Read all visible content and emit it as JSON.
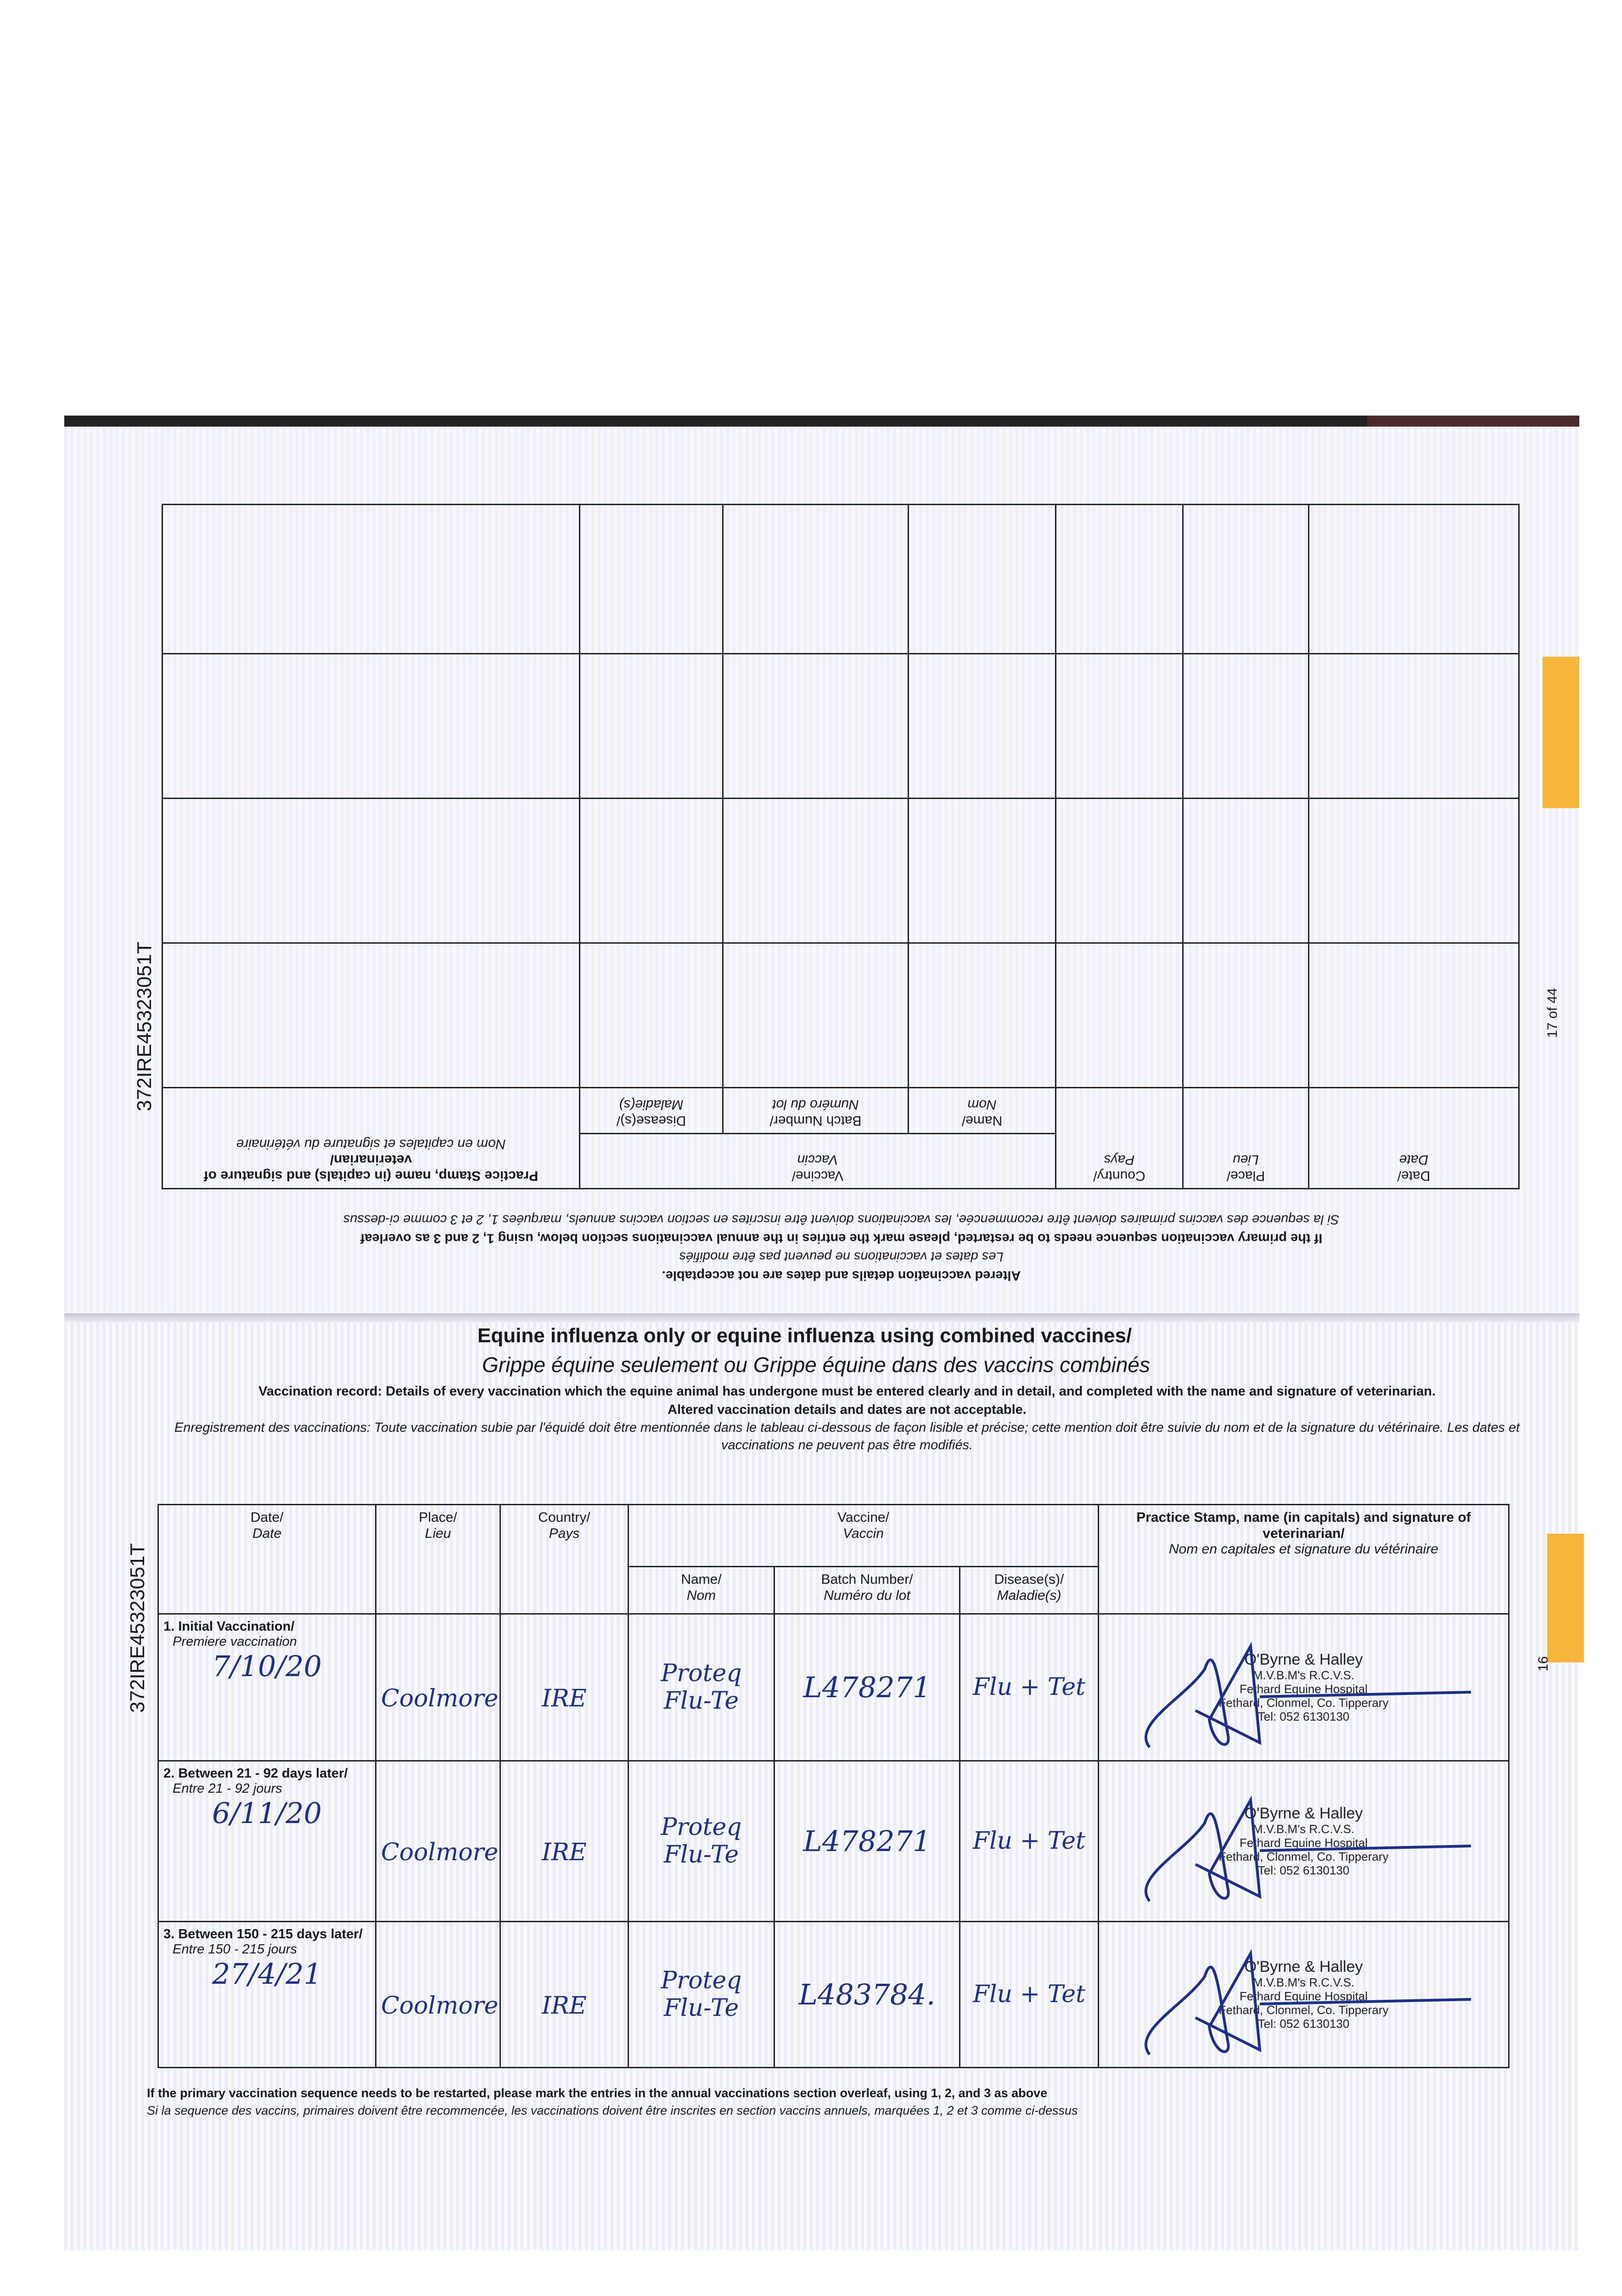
{
  "doc_id": "372IRE45323051T",
  "page_labels": {
    "top": "17 of 44",
    "bottom": "16"
  },
  "colors": {
    "ink": "#1c2f8c",
    "tab": "#f5b53c"
  },
  "upper_page": {
    "headers": {
      "date": "Date/",
      "date_fr": "Date",
      "place": "Place/",
      "place_fr": "Lieu",
      "country": "Country/",
      "country_fr": "Pays",
      "vaccine": "Vaccine/",
      "vaccine_fr": "Vaccin",
      "name": "Name/",
      "name_fr": "Nom",
      "batch": "Batch Number/",
      "batch_fr": "Numéro du lot",
      "disease": "Disease(s)/",
      "disease_fr": "Maladie(s)",
      "stamp": "Practice Stamp, name (in capitals) and signature of veterinarian/",
      "stamp_fr": "Nom en capitales et signature du vétérinaire"
    },
    "notes": [
      "Altered vaccination details and dates are not acceptable.",
      "Les dates et vaccinations ne peuvent pas être modifiés",
      "If the primary vaccination sequence needs to be restarted, please mark the entries in the annual vaccinations section below, using 1, 2 and 3 as overleaf",
      "Si la sequence des vaccins primaires doivent être recommencée, les vaccinations doivent être inscrites en section vaccins annuels, marquées 1, 2 et 3 comme ci-dessus"
    ]
  },
  "lower_page": {
    "title_en": "Equine influenza only or equine influenza using combined vaccines/",
    "title_fr": "Grippe équine seulement ou Grippe équine dans des vaccins combinés",
    "record_en": "Vaccination record: Details of every vaccination which the equine animal has undergone must be entered clearly and in detail, and completed with the name and signature of veterinarian.",
    "record_en2": "Altered vaccination details and dates are not acceptable.",
    "record_fr": "Enregistrement des vaccinations: Toute vaccination subie par l'équidé doit être mentionnée dans le tableau ci-dessous de façon lisible et précise; cette mention doit être suivie du nom et de la signature du vétérinaire. Les dates et vaccinations ne peuvent pas être modifiés.",
    "headers": {
      "date": "Date/",
      "date_fr": "Date",
      "place": "Place/",
      "place_fr": "Lieu",
      "country": "Country/",
      "country_fr": "Pays",
      "vaccine": "Vaccine/",
      "vaccine_fr": "Vaccin",
      "name": "Name/",
      "name_fr": "Nom",
      "batch": "Batch Number/",
      "batch_fr": "Numéro du lot",
      "disease": "Disease(s)/",
      "disease_fr": "Maladie(s)",
      "stamp": "Practice Stamp, name (in capitals) and signature of veterinarian/",
      "stamp_fr": "Nom en capitales et signature du vétérinaire"
    },
    "rows": [
      {
        "label": "1. Initial Vaccination/",
        "label_fr": "Premiere vaccination",
        "date": "7/10/20",
        "place": "Coolmore",
        "country": "IRE",
        "name": "Proteq Flu-Te",
        "batch": "L478271",
        "disease": "Flu + Tet",
        "stamp": [
          "O'Byrne & Halley",
          "M.V.B.M's R.C.V.S.",
          "Fethard Equine Hospital",
          "Fethard, Clonmel, Co. Tipperary",
          "Tel: 052 6130130"
        ]
      },
      {
        "label": "2. Between 21 - 92 days later/",
        "label_fr": "Entre 21 - 92 jours",
        "date": "6/11/20",
        "place": "Coolmore",
        "country": "IRE",
        "name": "Proteq Flu-Te",
        "batch": "L478271",
        "disease": "Flu + Tet",
        "stamp": [
          "O'Byrne & Halley",
          "M.V.B.M's R.C.V.S.",
          "Fethard Equine Hospital",
          "Fethard, Clonmel, Co. Tipperary",
          "Tel: 052 6130130"
        ]
      },
      {
        "label": "3. Between 150 - 215 days later/",
        "label_fr": "Entre 150 - 215 jours",
        "date": "27/4/21",
        "place": "Coolmore",
        "country": "IRE",
        "name": "Proteq Flu-Te",
        "batch": "L483784.",
        "disease": "Flu + Tet",
        "stamp": [
          "O'Byrne & Halley",
          "M.V.B.M's R.C.V.S.",
          "Fethard Equine Hospital",
          "Fethard, Clonmel, Co. Tipperary",
          "Tel: 052 6130130"
        ]
      }
    ],
    "footer_en": "If the primary vaccination sequence needs to be restarted, please mark the entries in the annual vaccinations section overleaf, using 1, 2, and 3 as above",
    "footer_fr": "Si la sequence des vaccins, primaires doivent être recommencée, les vaccinations doivent être inscrites en section vaccins annuels, marquées 1, 2 et 3 comme ci-dessus"
  }
}
